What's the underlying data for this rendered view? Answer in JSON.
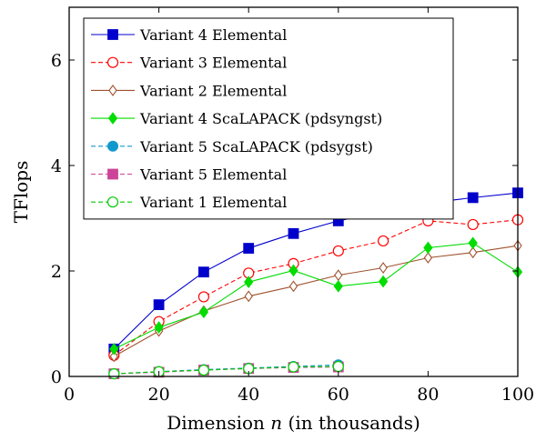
{
  "chart_data": {
    "type": "line",
    "xlabel": "Dimension",
    "xlabel_var": "n",
    "xlabel_suffix": "(in thousands)",
    "ylabel": "TFlops",
    "xlim": [
      0,
      100
    ],
    "ylim": [
      0,
      7
    ],
    "xticks": [
      0,
      20,
      40,
      60,
      80,
      100
    ],
    "yticks": [
      0,
      2,
      4,
      6
    ],
    "grid": false,
    "legend_position": "top-left",
    "series": [
      {
        "name": "Variant 4 Elemental",
        "color": "#0000cc",
        "marker": "square-filled",
        "dash": "solid",
        "x": [
          10,
          20,
          30,
          40,
          50,
          60,
          70,
          80,
          90,
          100
        ],
        "y": [
          0.52,
          1.36,
          1.98,
          2.43,
          2.71,
          2.95,
          3.12,
          3.29,
          3.39,
          3.48
        ]
      },
      {
        "name": "Variant 3 Elemental",
        "color": "#ff0000",
        "marker": "circle-open",
        "dash": "dashed",
        "x": [
          10,
          20,
          30,
          40,
          50,
          60,
          70,
          80,
          90,
          100
        ],
        "y": [
          0.4,
          1.04,
          1.51,
          1.96,
          2.14,
          2.38,
          2.57,
          2.95,
          2.88,
          2.97
        ]
      },
      {
        "name": "Variant 2 Elemental",
        "color": "#a0522d",
        "marker": "diamond-open",
        "dash": "solid",
        "x": [
          10,
          20,
          30,
          40,
          50,
          60,
          70,
          80,
          90,
          100
        ],
        "y": [
          0.38,
          0.86,
          1.24,
          1.52,
          1.71,
          1.92,
          2.06,
          2.25,
          2.35,
          2.48
        ]
      },
      {
        "name": "Variant 4 ScaLAPACK (pdsyngst)",
        "color": "#00dd00",
        "marker": "diamond-filled",
        "dash": "solid",
        "x": [
          10,
          20,
          30,
          40,
          50,
          60,
          70,
          80,
          90,
          100
        ],
        "y": [
          0.52,
          0.93,
          1.22,
          1.79,
          2.01,
          1.71,
          1.8,
          2.44,
          2.53,
          1.98
        ]
      },
      {
        "name": "Variant 5 ScaLAPACK (pdsygst)",
        "color": "#1199cc",
        "marker": "circle-filled",
        "dash": "dashed",
        "x": [
          10,
          20,
          30,
          40,
          50,
          60
        ],
        "y": [
          0.05,
          0.09,
          0.13,
          0.16,
          0.19,
          0.22
        ]
      },
      {
        "name": "Variant 5 Elemental",
        "color": "#cc4499",
        "marker": "square-filled",
        "dash": "dashed",
        "x": [
          10,
          20,
          30,
          40,
          50,
          60
        ],
        "y": [
          0.05,
          0.08,
          0.12,
          0.15,
          0.17,
          0.18
        ]
      },
      {
        "name": "Variant 1 Elemental",
        "color": "#00cc00",
        "marker": "circle-open",
        "dash": "dashed",
        "x": [
          10,
          20,
          30,
          40,
          50,
          60
        ],
        "y": [
          0.05,
          0.09,
          0.12,
          0.15,
          0.18,
          0.19
        ]
      }
    ]
  }
}
